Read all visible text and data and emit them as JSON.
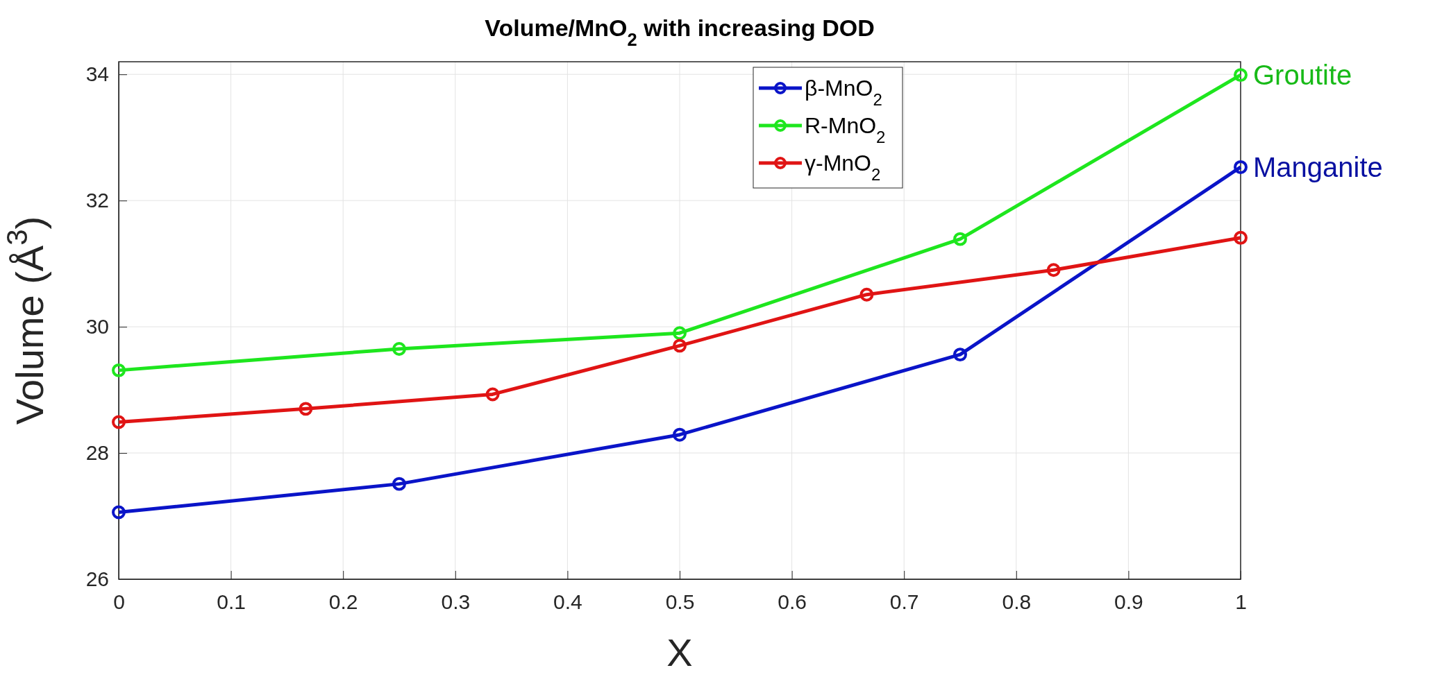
{
  "chart_data": {
    "type": "line",
    "title": "Volume/MnO$_{2}$ with increasing DOD",
    "xlabel": "X",
    "ylabel": "Volume (Å$^{3}$)",
    "xlim": [
      0,
      1
    ],
    "xticks": [
      0,
      0.1,
      0.2,
      0.3,
      0.4,
      0.5,
      0.6,
      0.7,
      0.8,
      0.9,
      1
    ],
    "ylim": [
      26,
      34.2
    ],
    "yticks": [
      26,
      28,
      30,
      32,
      34
    ],
    "grid": true,
    "legend": "top",
    "marker": "circle",
    "line_style": "solid",
    "series": [
      {
        "name": "β-MnO$_{2}$",
        "color": "#0a14c8",
        "x": [
          0,
          0.25,
          0.5,
          0.75,
          1
        ],
        "values": [
          27.06,
          27.51,
          28.29,
          29.56,
          32.53
        ]
      },
      {
        "name": "R-MnO$_{2}$",
        "color": "#1ee61e",
        "x": [
          0,
          0.25,
          0.5,
          0.75,
          1
        ],
        "values": [
          29.31,
          29.65,
          29.9,
          31.39,
          33.99
        ]
      },
      {
        "name": "γ-MnO$_{2}$",
        "color": "#e01414",
        "x": [
          0,
          0.1667,
          0.3333,
          0.5,
          0.6667,
          0.8333,
          1
        ],
        "values": [
          28.49,
          28.7,
          28.93,
          29.7,
          30.51,
          30.9,
          31.41
        ]
      }
    ],
    "annotations": [
      {
        "text": "Groutite",
        "x": 1,
        "y": 33.99
      },
      {
        "text": "Manganite",
        "x": 1,
        "y": 32.53
      }
    ]
  }
}
